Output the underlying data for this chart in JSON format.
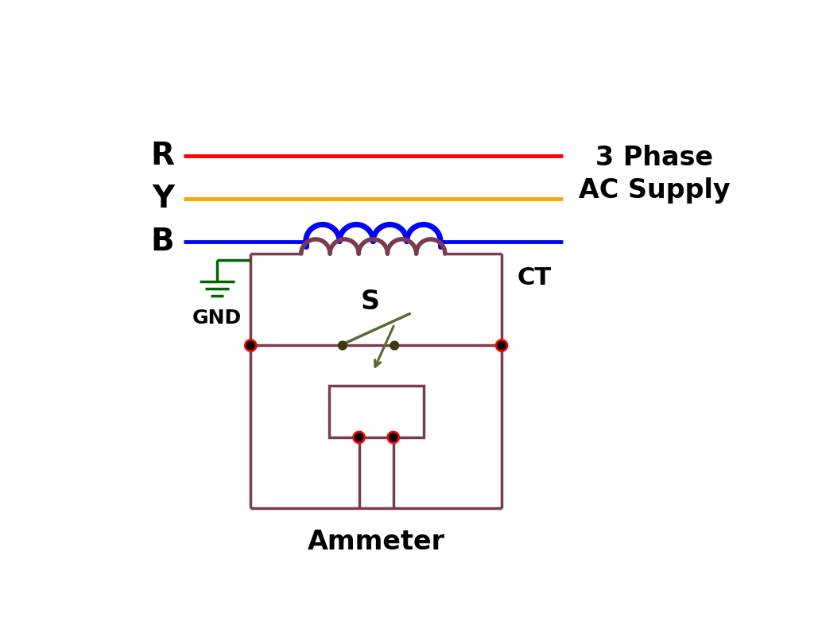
{
  "bg_color": "#ffffff",
  "line_color_R": "#ff0000",
  "line_color_Y": "#ffa500",
  "line_color_B": "#0000ff",
  "coil_primary_color": "#0000ff",
  "coil_secondary_color": "#7b3b4e",
  "circuit_color": "#7b3b4e",
  "switch_color": "#556b2f",
  "ammeter_color": "#556b2f",
  "gnd_color": "#006400",
  "dot_color_outer": "#ff0000",
  "dot_color_inner": "#000000",
  "switch_dot_color": "#3a3a10",
  "label_R": "R",
  "label_Y": "Y",
  "label_B": "B",
  "label_supply": "3 Phase\nAC Supply",
  "label_CT": "CT",
  "label_GND": "GND",
  "label_S": "S",
  "label_ammeter": "Ammeter",
  "figsize": [
    10.24,
    7.91
  ],
  "dpi": 100,
  "line_lw": 3.5,
  "circuit_lw": 2.5
}
